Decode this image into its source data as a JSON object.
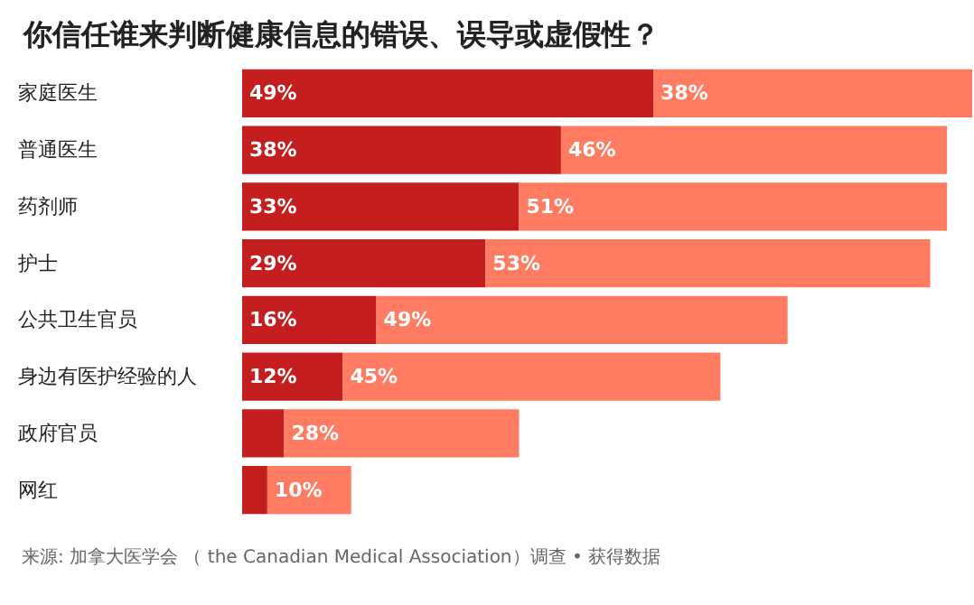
{
  "chart_data": {
    "type": "bar",
    "orientation": "horizontal",
    "stacked": true,
    "title": "你信任谁来判断健康信息的错误、误导或虚假性？",
    "categories": [
      "家庭医生",
      "普通医生",
      "药剂师",
      "护士",
      "公共卫生官员",
      "身边有医护经验的人",
      "政府官员",
      "网红"
    ],
    "series": [
      {
        "color": "#c41e1e",
        "values": [
          49,
          38,
          33,
          29,
          16,
          12,
          5,
          3
        ],
        "value_labels": [
          "49%",
          "38%",
          "33%",
          "29%",
          "16%",
          "12%",
          null,
          null
        ]
      },
      {
        "color": "#ff7b61",
        "values": [
          38,
          46,
          51,
          53,
          49,
          45,
          28,
          10
        ],
        "value_labels": [
          "38%",
          "46%",
          "51%",
          "53%",
          "49%",
          "45%",
          "28%",
          "10%"
        ]
      }
    ],
    "grid": false,
    "annotations": [
      "来源: 加拿大医学会 （ the Canadian Medical Association）调查 • 获得数据"
    ]
  }
}
